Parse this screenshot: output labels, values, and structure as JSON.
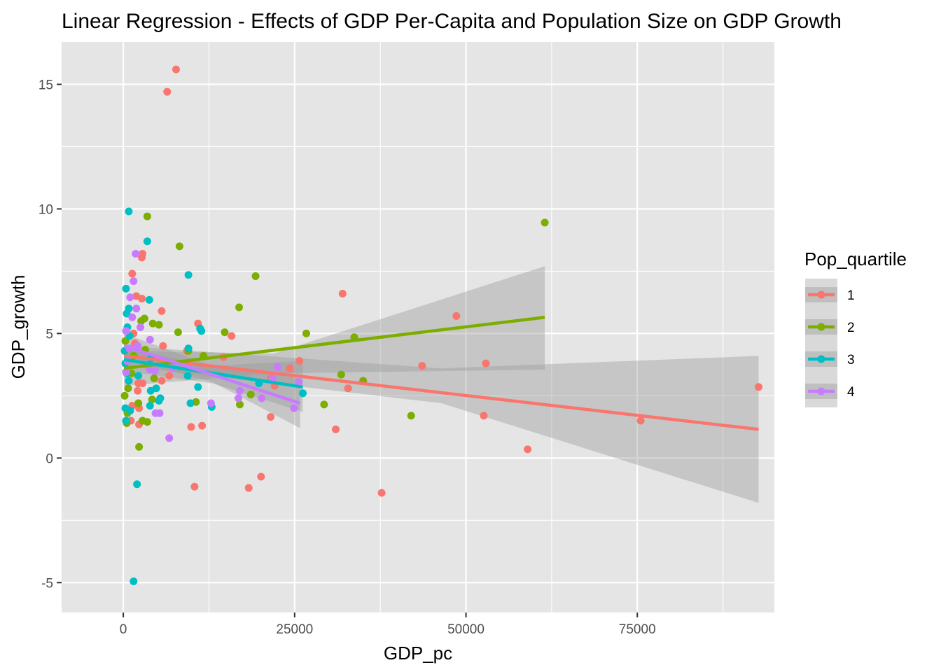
{
  "chart_data": {
    "type": "scatter",
    "title": "Linear Regression - Effects of GDP Per-Capita and Population Size on GDP Growth",
    "xlabel": "GDP_pc",
    "ylabel": "GDP_growth",
    "xlim": [
      -9000,
      95000
    ],
    "ylim": [
      -6.2,
      16.7
    ],
    "x_ticks": [
      0,
      25000,
      50000,
      75000
    ],
    "x_tick_labels": [
      "0",
      "25000",
      "50000",
      "75000"
    ],
    "y_ticks": [
      -5,
      0,
      5,
      10,
      15
    ],
    "y_tick_labels": [
      "-5",
      "0",
      "5",
      "10",
      "15"
    ],
    "grid": true,
    "legend": {
      "title": "Pop_quartile",
      "position": "right"
    },
    "colors": {
      "panel": "#e5e5e5",
      "grid": "#ffffff",
      "ribbon": "#999999",
      "tick": "#333333"
    },
    "series": [
      {
        "name": "1",
        "color": "#F8766D",
        "points": [
          [
            7700,
            15.6
          ],
          [
            6400,
            14.7
          ],
          [
            2800,
            8.2
          ],
          [
            2700,
            8.05
          ],
          [
            1300,
            7.4
          ],
          [
            32000,
            6.6
          ],
          [
            1900,
            6.5
          ],
          [
            2700,
            6.4
          ],
          [
            5600,
            5.9
          ],
          [
            48600,
            5.7
          ],
          [
            10900,
            5.4
          ],
          [
            1500,
            5.0
          ],
          [
            15800,
            4.9
          ],
          [
            1700,
            4.6
          ],
          [
            5800,
            4.5
          ],
          [
            9300,
            4.3
          ],
          [
            14600,
            4.05
          ],
          [
            25700,
            3.9
          ],
          [
            52900,
            3.8
          ],
          [
            43600,
            3.7
          ],
          [
            24300,
            3.6
          ],
          [
            6700,
            3.3
          ],
          [
            21500,
            3.2
          ],
          [
            2200,
            3.0
          ],
          [
            5600,
            3.1
          ],
          [
            2800,
            3.0
          ],
          [
            2100,
            2.7
          ],
          [
            32800,
            2.8
          ],
          [
            1300,
            2.1
          ],
          [
            2300,
            2.0
          ],
          [
            22100,
            2.9
          ],
          [
            92700,
            2.85
          ],
          [
            52600,
            1.7
          ],
          [
            21500,
            1.65
          ],
          [
            75500,
            1.5
          ],
          [
            11500,
            1.3
          ],
          [
            9900,
            1.25
          ],
          [
            31000,
            1.15
          ],
          [
            1100,
            1.5
          ],
          [
            2300,
            1.35
          ],
          [
            59000,
            0.35
          ],
          [
            20100,
            -0.75
          ],
          [
            10400,
            -1.15
          ],
          [
            18300,
            -1.2
          ],
          [
            37700,
            -1.4
          ]
        ],
        "fit": [
          [
            100,
            4.1
          ],
          [
            92700,
            1.15
          ]
        ],
        "ribbon_upper": [
          [
            100,
            4.5
          ],
          [
            46400,
            3.6
          ],
          [
            92700,
            4.1
          ]
        ],
        "ribbon_lower": [
          [
            100,
            3.7
          ],
          [
            46400,
            2.2
          ],
          [
            92700,
            -1.8
          ]
        ]
      },
      {
        "name": "2",
        "color": "#7CAE00",
        "points": [
          [
            61500,
            9.45
          ],
          [
            3500,
            9.7
          ],
          [
            8200,
            8.5
          ],
          [
            19300,
            7.3
          ],
          [
            16900,
            6.05
          ],
          [
            2600,
            5.5
          ],
          [
            3100,
            5.6
          ],
          [
            4300,
            5.4
          ],
          [
            5200,
            5.35
          ],
          [
            8000,
            5.05
          ],
          [
            14800,
            5.05
          ],
          [
            26700,
            5.0
          ],
          [
            33700,
            4.85
          ],
          [
            300,
            4.7
          ],
          [
            3200,
            4.35
          ],
          [
            1500,
            4.1
          ],
          [
            11700,
            4.1
          ],
          [
            9500,
            4.3
          ],
          [
            31800,
            3.35
          ],
          [
            35000,
            3.1
          ],
          [
            4500,
            3.2
          ],
          [
            1200,
            3.4
          ],
          [
            200,
            2.5
          ],
          [
            700,
            2.8
          ],
          [
            600,
            1.8
          ],
          [
            18600,
            2.55
          ],
          [
            29300,
            2.15
          ],
          [
            17000,
            2.15
          ],
          [
            4200,
            2.35
          ],
          [
            2200,
            2.2
          ],
          [
            10600,
            2.25
          ],
          [
            3500,
            1.45
          ],
          [
            2800,
            1.5
          ],
          [
            42000,
            1.7
          ],
          [
            500,
            1.4
          ],
          [
            2300,
            0.45
          ]
        ],
        "fit": [
          [
            100,
            3.6
          ],
          [
            61500,
            5.65
          ]
        ],
        "ribbon_upper": [
          [
            100,
            4.3
          ],
          [
            22000,
            4.2
          ],
          [
            61500,
            7.7
          ]
        ],
        "ribbon_lower": [
          [
            100,
            2.9
          ],
          [
            22000,
            3.4
          ],
          [
            61500,
            3.55
          ]
        ]
      },
      {
        "name": "3",
        "color": "#00BFC4",
        "points": [
          [
            800,
            9.9
          ],
          [
            3500,
            8.7
          ],
          [
            9500,
            7.35
          ],
          [
            400,
            6.8
          ],
          [
            3800,
            6.35
          ],
          [
            800,
            6.0
          ],
          [
            500,
            5.8
          ],
          [
            11200,
            5.2
          ],
          [
            11400,
            5.1
          ],
          [
            600,
            5.25
          ],
          [
            900,
            4.9
          ],
          [
            9500,
            4.4
          ],
          [
            200,
            4.3
          ],
          [
            4000,
            4.0
          ],
          [
            300,
            3.8
          ],
          [
            500,
            3.4
          ],
          [
            800,
            3.1
          ],
          [
            2200,
            3.3
          ],
          [
            9400,
            3.3
          ],
          [
            19800,
            3.0
          ],
          [
            10900,
            2.85
          ],
          [
            4000,
            2.7
          ],
          [
            26200,
            2.6
          ],
          [
            4800,
            2.8
          ],
          [
            5400,
            2.4
          ],
          [
            5200,
            2.3
          ],
          [
            9800,
            2.2
          ],
          [
            12900,
            2.05
          ],
          [
            3900,
            2.1
          ],
          [
            300,
            2.0
          ],
          [
            1000,
            1.9
          ],
          [
            400,
            1.5
          ],
          [
            2000,
            -1.05
          ],
          [
            1500,
            -4.95
          ]
        ],
        "fit": [
          [
            100,
            3.95
          ],
          [
            26200,
            2.85
          ]
        ],
        "ribbon_upper": [
          [
            100,
            4.4
          ],
          [
            13000,
            3.7
          ],
          [
            26200,
            3.9
          ]
        ],
        "ribbon_lower": [
          [
            100,
            3.5
          ],
          [
            13000,
            3.0
          ],
          [
            26200,
            1.85
          ]
        ]
      },
      {
        "name": "4",
        "color": "#C77CFF",
        "points": [
          [
            1800,
            8.2
          ],
          [
            1500,
            7.1
          ],
          [
            1900,
            6.0
          ],
          [
            1000,
            6.45
          ],
          [
            1300,
            5.65
          ],
          [
            2500,
            5.25
          ],
          [
            400,
            5.1
          ],
          [
            3900,
            4.75
          ],
          [
            2100,
            4.5
          ],
          [
            900,
            4.4
          ],
          [
            600,
            3.9
          ],
          [
            400,
            3.45
          ],
          [
            3900,
            3.55
          ],
          [
            4600,
            3.5
          ],
          [
            7200,
            3.6
          ],
          [
            22500,
            3.65
          ],
          [
            17000,
            2.7
          ],
          [
            21800,
            3.2
          ],
          [
            16800,
            2.4
          ],
          [
            20200,
            2.4
          ],
          [
            25600,
            3.05
          ],
          [
            12800,
            2.2
          ],
          [
            24900,
            2.0
          ],
          [
            5300,
            1.8
          ],
          [
            4700,
            1.8
          ],
          [
            6700,
            0.8
          ]
        ],
        "fit": [
          [
            100,
            4.5
          ],
          [
            25800,
            2.2
          ]
        ],
        "ribbon_upper": [
          [
            100,
            5.0
          ],
          [
            13000,
            3.7
          ],
          [
            25800,
            3.2
          ]
        ],
        "ribbon_lower": [
          [
            100,
            4.0
          ],
          [
            13000,
            3.05
          ],
          [
            25800,
            1.2
          ]
        ]
      }
    ]
  }
}
